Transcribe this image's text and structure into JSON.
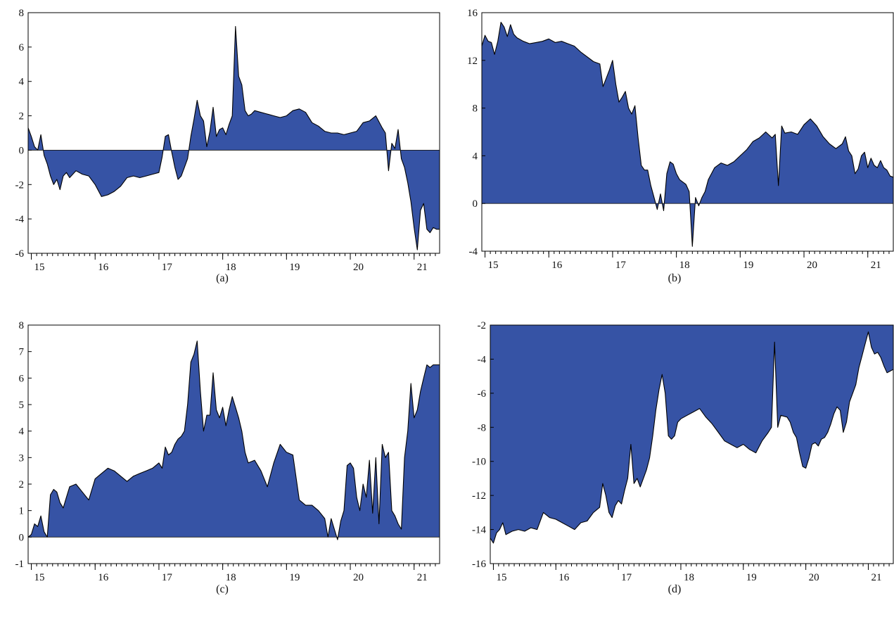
{
  "figure": {
    "fill_color": "#3653a5",
    "line_color": "#000000"
  },
  "chart_data": [
    {
      "panel": "a",
      "caption": "(a)",
      "type": "area",
      "ylim": [
        -6,
        8
      ],
      "yticks": [
        "-6",
        "-4",
        "-2",
        "0",
        "2",
        "4",
        "6",
        "8"
      ],
      "yticks_values": [
        -6,
        -4,
        -2,
        0,
        2,
        4,
        6,
        8
      ],
      "xlim": [
        14.95,
        21.4
      ],
      "xticks": [
        "15",
        "16",
        "17",
        "18",
        "19",
        "20",
        "21"
      ],
      "xticks_values": [
        15,
        16,
        17,
        18,
        19,
        20,
        21
      ],
      "fill_to": 0,
      "series": [
        {
          "x": [
            14.95,
            15.0,
            15.05,
            15.1,
            15.15,
            15.2,
            15.25,
            15.3,
            15.35,
            15.4,
            15.45,
            15.5,
            15.55,
            15.6,
            15.7,
            15.8,
            15.9,
            16.0,
            16.1,
            16.2,
            16.3,
            16.4,
            16.5,
            16.6,
            16.7,
            16.8,
            16.9,
            17.0,
            17.05,
            17.1,
            17.15,
            17.2,
            17.25,
            17.3,
            17.35,
            17.4,
            17.45,
            17.5,
            17.55,
            17.6,
            17.65,
            17.7,
            17.75,
            17.8,
            17.85,
            17.9,
            17.95,
            18.0,
            18.05,
            18.1,
            18.15,
            18.2,
            18.25,
            18.3,
            18.35,
            18.4,
            18.45,
            18.5,
            18.6,
            18.7,
            18.8,
            18.9,
            19.0,
            19.1,
            19.2,
            19.3,
            19.4,
            19.5,
            19.6,
            19.7,
            19.8,
            19.9,
            20.0,
            20.1,
            20.2,
            20.3,
            20.4,
            20.5,
            20.55,
            20.6,
            20.65,
            20.7,
            20.75,
            20.8,
            20.85,
            20.9,
            20.95,
            21.0,
            21.05,
            21.1,
            21.15,
            21.2,
            21.25,
            21.3,
            21.35,
            21.4
          ],
          "values": [
            1.3,
            0.8,
            0.2,
            0.0,
            0.9,
            -0.3,
            -0.8,
            -1.5,
            -2.0,
            -1.7,
            -2.3,
            -1.5,
            -1.3,
            -1.6,
            -1.2,
            -1.4,
            -1.5,
            -2.0,
            -2.7,
            -2.6,
            -2.4,
            -2.1,
            -1.6,
            -1.5,
            -1.6,
            -1.5,
            -1.4,
            -1.3,
            -0.4,
            0.8,
            0.9,
            -0.1,
            -1.0,
            -1.7,
            -1.5,
            -1.0,
            -0.5,
            0.8,
            1.8,
            2.9,
            2.0,
            1.7,
            0.2,
            1.1,
            2.5,
            0.8,
            1.2,
            1.3,
            0.9,
            1.5,
            2.0,
            7.2,
            4.3,
            3.8,
            2.3,
            2.0,
            2.1,
            2.3,
            2.2,
            2.1,
            2.0,
            1.9,
            2.0,
            2.3,
            2.4,
            2.2,
            1.6,
            1.4,
            1.1,
            1.0,
            1.0,
            0.9,
            1.0,
            1.1,
            1.6,
            1.7,
            2.0,
            1.3,
            1.0,
            -1.2,
            0.4,
            0.1,
            1.2,
            -0.5,
            -1.0,
            -1.9,
            -3.0,
            -4.5,
            -5.8,
            -3.5,
            -3.1,
            -4.6,
            -4.8,
            -4.5,
            -4.6,
            -4.6
          ]
        }
      ]
    },
    {
      "panel": "b",
      "caption": "(b)",
      "type": "area",
      "ylim": [
        -4,
        16
      ],
      "yticks": [
        "-4",
        "0",
        "4",
        "8",
        "12",
        "16"
      ],
      "yticks_values": [
        -4,
        0,
        4,
        8,
        12,
        16
      ],
      "xlim": [
        14.95,
        21.4
      ],
      "xticks": [
        "15",
        "16",
        "17",
        "18",
        "19",
        "20",
        "21"
      ],
      "xticks_values": [
        15,
        16,
        17,
        18,
        19,
        20,
        21
      ],
      "fill_to": 0,
      "series": [
        {
          "x": [
            14.95,
            15.0,
            15.05,
            15.1,
            15.15,
            15.2,
            15.25,
            15.3,
            15.35,
            15.4,
            15.45,
            15.5,
            15.6,
            15.7,
            15.8,
            15.9,
            16.0,
            16.1,
            16.2,
            16.3,
            16.4,
            16.5,
            16.6,
            16.7,
            16.8,
            16.85,
            16.9,
            16.95,
            17.0,
            17.05,
            17.1,
            17.15,
            17.2,
            17.25,
            17.3,
            17.35,
            17.4,
            17.45,
            17.5,
            17.55,
            17.6,
            17.65,
            17.7,
            17.75,
            17.8,
            17.85,
            17.9,
            17.95,
            18.0,
            18.05,
            18.1,
            18.15,
            18.2,
            18.25,
            18.3,
            18.35,
            18.4,
            18.45,
            18.5,
            18.6,
            18.7,
            18.8,
            18.9,
            19.0,
            19.1,
            19.2,
            19.3,
            19.4,
            19.5,
            19.55,
            19.6,
            19.65,
            19.7,
            19.8,
            19.9,
            20.0,
            20.1,
            20.2,
            20.3,
            20.4,
            20.5,
            20.6,
            20.65,
            20.7,
            20.75,
            20.8,
            20.85,
            20.9,
            20.95,
            21.0,
            21.05,
            21.1,
            21.15,
            21.2,
            21.25,
            21.3,
            21.35,
            21.4
          ],
          "values": [
            13.2,
            14.1,
            13.6,
            13.5,
            12.5,
            13.6,
            15.2,
            14.8,
            14.0,
            15.0,
            14.2,
            13.9,
            13.6,
            13.4,
            13.5,
            13.6,
            13.8,
            13.5,
            13.6,
            13.4,
            13.2,
            12.7,
            12.3,
            11.9,
            11.7,
            9.8,
            10.5,
            11.2,
            12.0,
            10.0,
            8.5,
            8.9,
            9.4,
            8.0,
            7.5,
            8.2,
            5.5,
            3.2,
            2.8,
            2.8,
            1.5,
            0.5,
            -0.5,
            0.8,
            -0.6,
            2.5,
            3.5,
            3.3,
            2.5,
            2.0,
            1.8,
            1.6,
            1.0,
            -3.6,
            0.5,
            -0.2,
            0.5,
            1.0,
            2.0,
            3.0,
            3.4,
            3.2,
            3.5,
            4.0,
            4.5,
            5.2,
            5.5,
            6.0,
            5.5,
            5.8,
            1.5,
            6.5,
            5.9,
            6.0,
            5.8,
            6.6,
            7.1,
            6.5,
            5.6,
            5.0,
            4.6,
            5.0,
            5.6,
            4.4,
            4.0,
            2.5,
            2.9,
            4.0,
            4.3,
            3.0,
            3.8,
            3.2,
            3.0,
            3.6,
            3.0,
            2.8,
            2.3,
            2.2
          ]
        }
      ]
    },
    {
      "panel": "c",
      "caption": "(c)",
      "type": "area",
      "ylim": [
        -1,
        8
      ],
      "yticks": [
        "-1",
        "0",
        "1",
        "2",
        "3",
        "4",
        "5",
        "6",
        "7",
        "8"
      ],
      "yticks_values": [
        -1,
        0,
        1,
        2,
        3,
        4,
        5,
        6,
        7,
        8
      ],
      "xlim": [
        14.95,
        21.4
      ],
      "xticks": [
        "15",
        "16",
        "17",
        "18",
        "19",
        "20",
        "21"
      ],
      "xticks_values": [
        15,
        16,
        17,
        18,
        19,
        20,
        21
      ],
      "fill_to": 0,
      "series": [
        {
          "x": [
            14.95,
            15.0,
            15.05,
            15.1,
            15.15,
            15.2,
            15.25,
            15.3,
            15.35,
            15.4,
            15.45,
            15.5,
            15.55,
            15.6,
            15.7,
            15.8,
            15.9,
            16.0,
            16.1,
            16.2,
            16.3,
            16.4,
            16.5,
            16.6,
            16.7,
            16.8,
            16.9,
            17.0,
            17.05,
            17.1,
            17.15,
            17.2,
            17.25,
            17.3,
            17.35,
            17.4,
            17.45,
            17.5,
            17.55,
            17.6,
            17.65,
            17.7,
            17.75,
            17.8,
            17.85,
            17.9,
            17.95,
            18.0,
            18.05,
            18.1,
            18.15,
            18.2,
            18.25,
            18.3,
            18.35,
            18.4,
            18.5,
            18.6,
            18.7,
            18.8,
            18.9,
            19.0,
            19.1,
            19.2,
            19.3,
            19.4,
            19.5,
            19.6,
            19.65,
            19.7,
            19.75,
            19.8,
            19.85,
            19.9,
            19.95,
            20.0,
            20.05,
            20.1,
            20.15,
            20.2,
            20.25,
            20.3,
            20.35,
            20.4,
            20.45,
            20.5,
            20.55,
            20.6,
            20.65,
            20.7,
            20.75,
            20.8,
            20.85,
            20.9,
            20.95,
            21.0,
            21.05,
            21.1,
            21.15,
            21.2,
            21.25,
            21.3,
            21.35,
            21.4
          ],
          "values": [
            0.0,
            0.1,
            0.5,
            0.4,
            0.8,
            0.2,
            0.0,
            1.6,
            1.8,
            1.7,
            1.3,
            1.1,
            1.5,
            1.9,
            2.0,
            1.7,
            1.4,
            2.2,
            2.4,
            2.6,
            2.5,
            2.3,
            2.1,
            2.3,
            2.4,
            2.5,
            2.6,
            2.8,
            2.6,
            3.4,
            3.1,
            3.2,
            3.5,
            3.7,
            3.8,
            4.0,
            5.0,
            6.6,
            6.9,
            7.4,
            5.5,
            4.0,
            4.6,
            4.6,
            6.2,
            4.8,
            4.5,
            4.9,
            4.2,
            4.8,
            5.3,
            4.9,
            4.5,
            4.0,
            3.2,
            2.8,
            2.9,
            2.5,
            1.9,
            2.8,
            3.5,
            3.2,
            3.1,
            1.4,
            1.2,
            1.2,
            1.0,
            0.7,
            0.0,
            0.7,
            0.3,
            -0.1,
            0.6,
            1.0,
            2.7,
            2.8,
            2.6,
            1.5,
            1.0,
            2.0,
            1.5,
            2.9,
            0.9,
            3.0,
            0.5,
            3.5,
            3.0,
            3.2,
            1.0,
            0.8,
            0.5,
            0.3,
            3.0,
            4.0,
            5.8,
            4.5,
            4.8,
            5.5,
            6.0,
            6.5,
            6.4,
            6.5,
            6.5,
            6.5
          ]
        }
      ]
    },
    {
      "panel": "d",
      "caption": "(d)",
      "type": "area",
      "ylim": [
        -16,
        -2
      ],
      "yticks": [
        "-16",
        "-14",
        "-12",
        "-10",
        "-8",
        "-6",
        "-4",
        "-2"
      ],
      "yticks_values": [
        -16,
        -14,
        -12,
        -10,
        -8,
        -6,
        -4,
        -2
      ],
      "xlim": [
        14.95,
        21.4
      ],
      "xticks": [
        "15",
        "16",
        "17",
        "18",
        "19",
        "20",
        "21"
      ],
      "xticks_values": [
        15,
        16,
        17,
        18,
        19,
        20,
        21
      ],
      "fill_to": -2,
      "series": [
        {
          "x": [
            14.95,
            15.0,
            15.05,
            15.1,
            15.15,
            15.2,
            15.3,
            15.4,
            15.5,
            15.6,
            15.7,
            15.8,
            15.9,
            16.0,
            16.1,
            16.2,
            16.3,
            16.4,
            16.5,
            16.6,
            16.7,
            16.75,
            16.8,
            16.85,
            16.9,
            16.95,
            17.0,
            17.05,
            17.1,
            17.15,
            17.2,
            17.25,
            17.3,
            17.35,
            17.4,
            17.45,
            17.5,
            17.55,
            17.6,
            17.65,
            17.7,
            17.75,
            17.8,
            17.85,
            17.9,
            17.95,
            18.0,
            18.1,
            18.2,
            18.3,
            18.4,
            18.5,
            18.6,
            18.7,
            18.8,
            18.9,
            19.0,
            19.1,
            19.2,
            19.3,
            19.4,
            19.45,
            19.5,
            19.55,
            19.6,
            19.7,
            19.75,
            19.8,
            19.85,
            19.9,
            19.95,
            20.0,
            20.05,
            20.1,
            20.15,
            20.2,
            20.25,
            20.3,
            20.35,
            20.4,
            20.45,
            20.5,
            20.55,
            20.6,
            20.65,
            20.7,
            20.75,
            20.8,
            20.85,
            20.9,
            20.95,
            21.0,
            21.05,
            21.1,
            21.15,
            21.2,
            21.25,
            21.3,
            21.35,
            21.4
          ],
          "values": [
            -14.5,
            -14.8,
            -14.2,
            -14.0,
            -13.6,
            -14.3,
            -14.1,
            -14.0,
            -14.1,
            -13.9,
            -14.0,
            -13.0,
            -13.3,
            -13.4,
            -13.6,
            -13.8,
            -14.0,
            -13.6,
            -13.5,
            -13.0,
            -12.7,
            -11.3,
            -12.0,
            -13.0,
            -13.3,
            -12.6,
            -12.3,
            -12.5,
            -11.7,
            -11.0,
            -9.0,
            -11.3,
            -11.0,
            -11.5,
            -11.0,
            -10.5,
            -9.8,
            -8.5,
            -7.0,
            -5.8,
            -4.9,
            -6.0,
            -8.5,
            -8.7,
            -8.5,
            -7.7,
            -7.5,
            -7.3,
            -7.1,
            -6.9,
            -7.4,
            -7.8,
            -8.3,
            -8.8,
            -9.0,
            -9.2,
            -9.0,
            -9.3,
            -9.5,
            -8.8,
            -8.3,
            -8.0,
            -3.0,
            -8.0,
            -7.3,
            -7.4,
            -7.7,
            -8.3,
            -8.6,
            -9.5,
            -10.3,
            -10.4,
            -9.8,
            -9.0,
            -8.9,
            -9.1,
            -8.7,
            -8.6,
            -8.3,
            -7.8,
            -7.2,
            -6.8,
            -7.0,
            -8.3,
            -7.7,
            -6.5,
            -6.0,
            -5.5,
            -4.5,
            -3.8,
            -3.1,
            -2.4,
            -3.3,
            -3.7,
            -3.6,
            -3.9,
            -4.4,
            -4.8,
            -4.7,
            -4.6
          ]
        }
      ]
    }
  ]
}
